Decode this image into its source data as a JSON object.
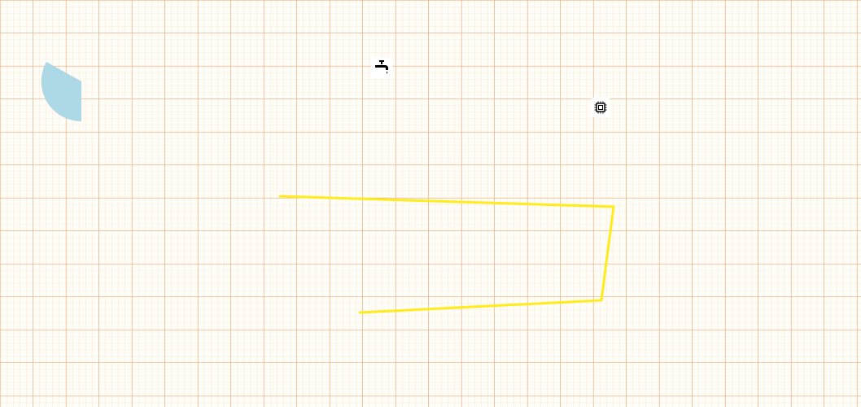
{
  "canvas": {
    "background": "#fefdf8",
    "grid_minor_color": "#fbd9b8",
    "grid_major_color": "#e7a26a"
  },
  "shapes": {
    "quarter_disc": {
      "fill": "#add8e6"
    },
    "polyline": {
      "stroke": "#ffec1a"
    }
  },
  "icons": [
    {
      "name": "faucet-icon",
      "color": "#000000"
    },
    {
      "name": "cpu-chip-icon",
      "color": "#000000"
    }
  ]
}
